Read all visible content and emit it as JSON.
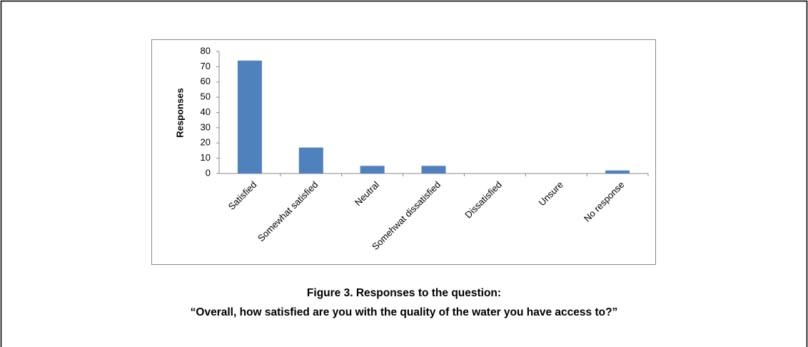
{
  "chart_data": {
    "type": "bar",
    "y_axis_label": "Responses",
    "categories": [
      "Satisfied",
      "Somewhat satisfied",
      "Neutral",
      "Somehwat dissatisfied",
      "Dissatisfied",
      "Unsure",
      "No response"
    ],
    "values": [
      74,
      17,
      5,
      5,
      0,
      0,
      2
    ],
    "color": "#4f81bd",
    "ylim": [
      0,
      80
    ],
    "yticks": [
      0,
      10,
      20,
      30,
      40,
      50,
      60,
      70,
      80
    ],
    "grid": false,
    "caption": [
      "Figure 3. Responses to the question:",
      "“Overall, how satisfied are you with the quality of the water you have access to?”"
    ]
  }
}
